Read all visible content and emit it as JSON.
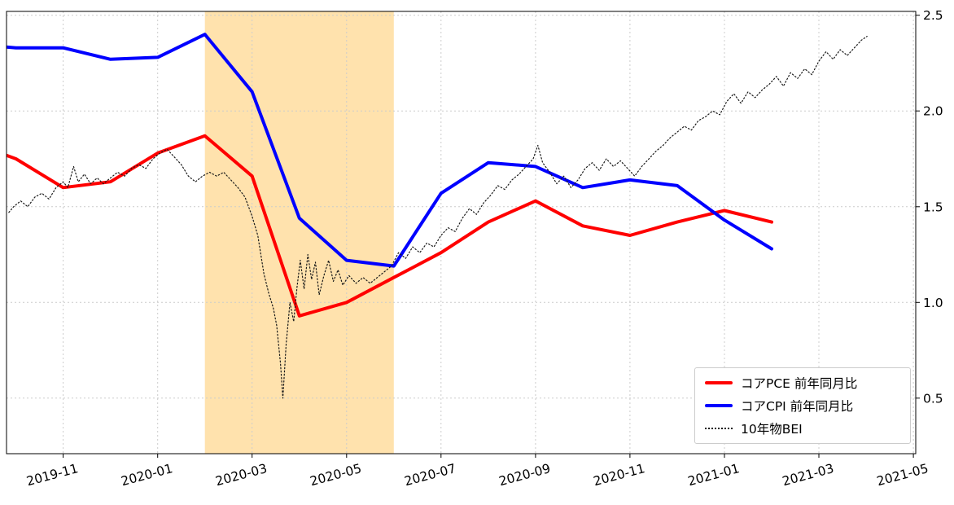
{
  "chart_data": {
    "type": "line",
    "title": "",
    "x_unit": "months since 2019-10",
    "x_domain": [
      -0.2,
      19.05
    ],
    "y_domain": [
      0.21,
      2.52
    ],
    "grid": true,
    "legend_position": "lower right",
    "x_ticks": [
      {
        "t": 1,
        "label": "2019-11"
      },
      {
        "t": 3,
        "label": "2020-01"
      },
      {
        "t": 5,
        "label": "2020-03"
      },
      {
        "t": 7,
        "label": "2020-05"
      },
      {
        "t": 9,
        "label": "2020-07"
      },
      {
        "t": 11,
        "label": "2020-09"
      },
      {
        "t": 13,
        "label": "2020-11"
      },
      {
        "t": 15,
        "label": "2021-01"
      },
      {
        "t": 17,
        "label": "2021-03"
      },
      {
        "t": 19,
        "label": "2021-05"
      }
    ],
    "y_ticks": [
      {
        "v": 0.5,
        "label": "0.5"
      },
      {
        "v": 1.0,
        "label": "1.0"
      },
      {
        "v": 1.5,
        "label": "1.5"
      },
      {
        "v": 2.0,
        "label": "2.0"
      },
      {
        "v": 2.5,
        "label": "2.5"
      }
    ],
    "shaded_span": {
      "t0": 4,
      "t1": 8,
      "months": [
        "2020-02",
        "2020-06"
      ],
      "color": "#ffe2ad"
    },
    "series": [
      {
        "name": "コアPCE 前年同月比",
        "color": "#ff0000",
        "width": 4,
        "style": "solid",
        "start_t": -1,
        "months": [
          "2019-09",
          "2019-10",
          "2019-11",
          "2019-12",
          "2020-01",
          "2020-02",
          "2020-03",
          "2020-04",
          "2020-05",
          "2020-06",
          "2020-07",
          "2020-08",
          "2020-09",
          "2020-10",
          "2020-11",
          "2020-12",
          "2021-01",
          "2021-02"
        ],
        "values": [
          1.84,
          1.75,
          1.6,
          1.63,
          1.78,
          1.87,
          1.66,
          0.93,
          1.0,
          1.13,
          1.26,
          1.42,
          1.53,
          1.4,
          1.35,
          1.42,
          1.48,
          1.42
        ]
      },
      {
        "name": "コアCPI 前年同月比",
        "color": "#0000ff",
        "width": 4,
        "style": "solid",
        "start_t": -1,
        "months": [
          "2019-09",
          "2019-10",
          "2019-11",
          "2019-12",
          "2020-01",
          "2020-02",
          "2020-03",
          "2020-04",
          "2020-05",
          "2020-06",
          "2020-07",
          "2020-08",
          "2020-09",
          "2020-10",
          "2020-11",
          "2020-12",
          "2021-01",
          "2021-02"
        ],
        "values": [
          2.35,
          2.33,
          2.33,
          2.27,
          2.28,
          2.4,
          2.1,
          1.44,
          1.22,
          1.19,
          1.57,
          1.73,
          1.71,
          1.6,
          1.64,
          1.61,
          1.43,
          1.28
        ]
      },
      {
        "name": "10年物BEI",
        "color": "#1a1a1a",
        "width": 1.2,
        "style": "dotted",
        "points": [
          [
            -0.15,
            1.47
          ],
          [
            -0.05,
            1.5
          ],
          [
            0.1,
            1.53
          ],
          [
            0.25,
            1.5
          ],
          [
            0.4,
            1.55
          ],
          [
            0.55,
            1.57
          ],
          [
            0.7,
            1.54
          ],
          [
            0.85,
            1.6
          ],
          [
            1.0,
            1.63
          ],
          [
            1.1,
            1.6
          ],
          [
            1.22,
            1.71
          ],
          [
            1.32,
            1.63
          ],
          [
            1.45,
            1.67
          ],
          [
            1.58,
            1.62
          ],
          [
            1.72,
            1.65
          ],
          [
            1.85,
            1.62
          ],
          [
            2.0,
            1.65
          ],
          [
            2.15,
            1.68
          ],
          [
            2.3,
            1.66
          ],
          [
            2.45,
            1.7
          ],
          [
            2.6,
            1.72
          ],
          [
            2.75,
            1.7
          ],
          [
            2.9,
            1.75
          ],
          [
            3.05,
            1.78
          ],
          [
            3.2,
            1.8
          ],
          [
            3.35,
            1.76
          ],
          [
            3.5,
            1.72
          ],
          [
            3.65,
            1.66
          ],
          [
            3.8,
            1.63
          ],
          [
            3.95,
            1.66
          ],
          [
            4.1,
            1.68
          ],
          [
            4.25,
            1.66
          ],
          [
            4.4,
            1.68
          ],
          [
            4.55,
            1.64
          ],
          [
            4.7,
            1.6
          ],
          [
            4.85,
            1.55
          ],
          [
            5.0,
            1.45
          ],
          [
            5.12,
            1.35
          ],
          [
            5.25,
            1.15
          ],
          [
            5.35,
            1.05
          ],
          [
            5.45,
            0.97
          ],
          [
            5.52,
            0.88
          ],
          [
            5.6,
            0.68
          ],
          [
            5.65,
            0.5
          ],
          [
            5.72,
            0.78
          ],
          [
            5.8,
            1.0
          ],
          [
            5.88,
            0.9
          ],
          [
            5.95,
            1.08
          ],
          [
            6.02,
            1.22
          ],
          [
            6.1,
            1.07
          ],
          [
            6.18,
            1.25
          ],
          [
            6.26,
            1.12
          ],
          [
            6.34,
            1.21
          ],
          [
            6.42,
            1.04
          ],
          [
            6.52,
            1.14
          ],
          [
            6.62,
            1.22
          ],
          [
            6.72,
            1.11
          ],
          [
            6.82,
            1.17
          ],
          [
            6.92,
            1.09
          ],
          [
            7.05,
            1.14
          ],
          [
            7.2,
            1.1
          ],
          [
            7.35,
            1.13
          ],
          [
            7.5,
            1.1
          ],
          [
            7.65,
            1.13
          ],
          [
            7.8,
            1.16
          ],
          [
            7.95,
            1.19
          ],
          [
            8.1,
            1.26
          ],
          [
            8.25,
            1.23
          ],
          [
            8.4,
            1.29
          ],
          [
            8.55,
            1.26
          ],
          [
            8.7,
            1.31
          ],
          [
            8.85,
            1.29
          ],
          [
            9.0,
            1.35
          ],
          [
            9.15,
            1.39
          ],
          [
            9.3,
            1.37
          ],
          [
            9.45,
            1.44
          ],
          [
            9.6,
            1.49
          ],
          [
            9.75,
            1.46
          ],
          [
            9.9,
            1.52
          ],
          [
            10.05,
            1.56
          ],
          [
            10.2,
            1.61
          ],
          [
            10.35,
            1.59
          ],
          [
            10.5,
            1.64
          ],
          [
            10.65,
            1.67
          ],
          [
            10.8,
            1.71
          ],
          [
            10.95,
            1.75
          ],
          [
            11.05,
            1.82
          ],
          [
            11.15,
            1.73
          ],
          [
            11.3,
            1.68
          ],
          [
            11.45,
            1.62
          ],
          [
            11.6,
            1.66
          ],
          [
            11.75,
            1.6
          ],
          [
            11.9,
            1.64
          ],
          [
            12.05,
            1.7
          ],
          [
            12.2,
            1.73
          ],
          [
            12.35,
            1.69
          ],
          [
            12.5,
            1.75
          ],
          [
            12.65,
            1.71
          ],
          [
            12.8,
            1.74
          ],
          [
            12.95,
            1.7
          ],
          [
            13.1,
            1.66
          ],
          [
            13.25,
            1.71
          ],
          [
            13.4,
            1.75
          ],
          [
            13.55,
            1.79
          ],
          [
            13.7,
            1.82
          ],
          [
            13.85,
            1.86
          ],
          [
            14.0,
            1.89
          ],
          [
            14.15,
            1.92
          ],
          [
            14.3,
            1.9
          ],
          [
            14.45,
            1.95
          ],
          [
            14.6,
            1.97
          ],
          [
            14.75,
            2.0
          ],
          [
            14.9,
            1.98
          ],
          [
            15.05,
            2.05
          ],
          [
            15.2,
            2.09
          ],
          [
            15.35,
            2.04
          ],
          [
            15.5,
            2.1
          ],
          [
            15.65,
            2.07
          ],
          [
            15.8,
            2.11
          ],
          [
            15.95,
            2.14
          ],
          [
            16.1,
            2.18
          ],
          [
            16.25,
            2.13
          ],
          [
            16.4,
            2.2
          ],
          [
            16.55,
            2.17
          ],
          [
            16.7,
            2.22
          ],
          [
            16.85,
            2.19
          ],
          [
            17.0,
            2.26
          ],
          [
            17.15,
            2.31
          ],
          [
            17.3,
            2.27
          ],
          [
            17.45,
            2.32
          ],
          [
            17.6,
            2.29
          ],
          [
            17.75,
            2.33
          ],
          [
            17.9,
            2.37
          ],
          [
            18.02,
            2.39
          ]
        ]
      }
    ]
  },
  "legend": {
    "items": [
      {
        "label": "コアPCE 前年同月比"
      },
      {
        "label": "コアCPI 前年同月比"
      },
      {
        "label": "10年物BEI"
      }
    ]
  }
}
